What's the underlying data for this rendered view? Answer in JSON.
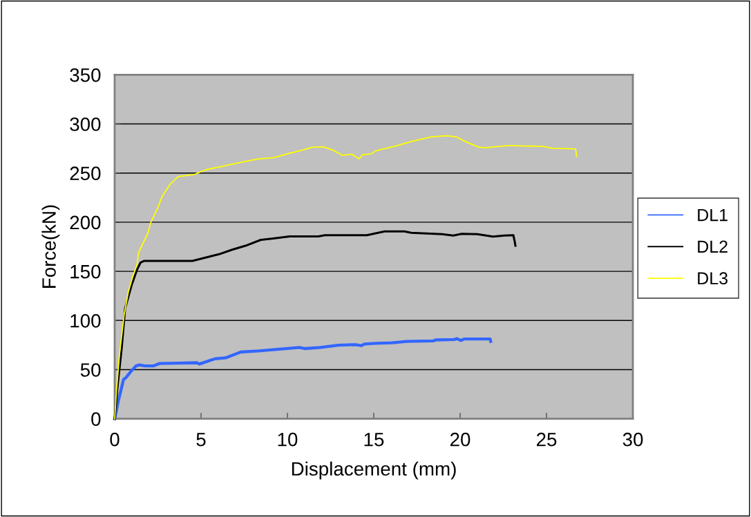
{
  "chart_data": {
    "type": "line",
    "xlabel": "Displacement (mm)",
    "ylabel": "Force(kN)",
    "xlim": [
      0,
      30
    ],
    "xticks": [
      0,
      5,
      10,
      15,
      20,
      25,
      30
    ],
    "ylim": [
      0,
      350
    ],
    "yticks": [
      0,
      50,
      100,
      150,
      200,
      250,
      300,
      350
    ],
    "grid": "y",
    "legend": "right",
    "marker": "none",
    "line_style": "solid",
    "series": [
      {
        "name": "DL1",
        "color": "#3366ff",
        "x": [
          0,
          0.22,
          0.51,
          0.66,
          0.98,
          1.24,
          1.43,
          1.75,
          2.26,
          2.58,
          3.6,
          4.76,
          4.9,
          5.78,
          6.42,
          7.3,
          8.34,
          9.87,
          10.7,
          11.0,
          11.9,
          12.94,
          13.96,
          14.28,
          14.47,
          15.11,
          16.07,
          16.9,
          18.44,
          18.57,
          19.65,
          19.82,
          20.04,
          20.23,
          21.74,
          21.77
        ],
        "values": [
          0,
          18.7,
          39.8,
          42,
          49,
          53.8,
          54.8,
          53.8,
          53.8,
          56.2,
          56.6,
          57,
          55.7,
          60.9,
          62,
          67.9,
          69,
          71.4,
          72.6,
          71.4,
          72.6,
          74.9,
          75.4,
          74.4,
          76.1,
          76.8,
          77.3,
          78.7,
          79.2,
          80.2,
          80.6,
          81.5,
          79.7,
          81.1,
          81.1,
          78.7
        ]
      },
      {
        "name": "DL2",
        "color": "#000000",
        "x": [
          0,
          0.15,
          0.41,
          0.6,
          0.98,
          1.3,
          1.5,
          1.69,
          4.5,
          6.04,
          6.8,
          7.57,
          8.46,
          9.1,
          10.13,
          11.79,
          12.17,
          14.6,
          15.11,
          15.63,
          16.78,
          17.17,
          18.96,
          19.6,
          20.1,
          21.0,
          21.9,
          22.55,
          23.08,
          23.16,
          23.2
        ],
        "values": [
          0,
          30.4,
          72.6,
          112,
          136,
          152,
          159,
          160.6,
          160.6,
          167.4,
          172,
          176,
          182,
          183.3,
          185.6,
          185.6,
          186.8,
          186.8,
          188.7,
          190.6,
          190.6,
          189.2,
          187.8,
          186.4,
          188.2,
          187.8,
          185.4,
          186.4,
          186.8,
          180.3,
          176.1
        ]
      },
      {
        "name": "DL3",
        "color": "#ffff00",
        "x": [
          0,
          0.09,
          0.28,
          0.54,
          0.79,
          1.05,
          1.3,
          1.37,
          1.94,
          2.07,
          2.45,
          2.77,
          3.22,
          3.67,
          4.63,
          5.27,
          6.29,
          7.31,
          8.34,
          9.23,
          10.0,
          11.0,
          11.41,
          12.05,
          12.56,
          13.19,
          13.71,
          14.15,
          14.35,
          14.86,
          15.12,
          16.26,
          17.16,
          18.31,
          19.2,
          19.78,
          20.23,
          21.0,
          21.38,
          22.79,
          24.83,
          25.34,
          26.68,
          26.75
        ],
        "values": [
          0,
          25.7,
          65.5,
          105,
          129,
          145,
          157,
          168.5,
          189.6,
          199,
          213,
          227,
          238.8,
          246.3,
          248.6,
          253.3,
          257,
          261,
          264.5,
          265.7,
          269.6,
          273.9,
          276.2,
          276.7,
          273.9,
          268,
          269.2,
          264.5,
          268.7,
          269.6,
          272.7,
          277.4,
          282,
          286.8,
          288,
          286.8,
          282.7,
          276.7,
          275.7,
          278,
          277.1,
          275.2,
          274.7,
          266.8
        ]
      }
    ]
  }
}
